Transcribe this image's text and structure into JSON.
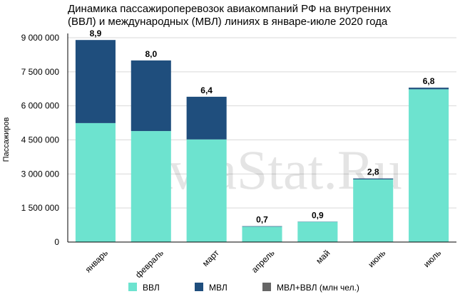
{
  "chart_data": {
    "type": "stacked_bar",
    "title": [
      "Динамика пассажироперевозок авиакомпаний РФ на внутренних",
      "(ВВЛ) и международных (МВЛ) линиях в январе-июле 2020 года"
    ],
    "ylabel": "Пассажиров",
    "watermark": "AviaStat.Ru",
    "categories": [
      "январь",
      "февраль",
      "март",
      "апрель",
      "май",
      "июнь",
      "июль"
    ],
    "series": [
      {
        "name": "ВВЛ",
        "color": "#6de3cf",
        "values": [
          5240000,
          4890000,
          4520000,
          680000,
          890000,
          2760000,
          6730000
        ]
      },
      {
        "name": "МВЛ",
        "color": "#1f4e7d",
        "values": [
          3660000,
          3110000,
          1880000,
          20000,
          10000,
          40000,
          70000
        ]
      },
      {
        "name": "МВЛ+ВВЛ (млн чел.)",
        "color": "#666666",
        "values": [
          8.9,
          8.0,
          6.4,
          0.7,
          0.9,
          2.8,
          6.8
        ],
        "value_labels": [
          "8,9",
          "8,0",
          "6,4",
          "0,7",
          "0,9",
          "2,8",
          "6,8"
        ]
      }
    ],
    "ylim": [
      0,
      9000000
    ],
    "yticks": [
      0,
      {
        "value": 1500000,
        "label": "1 500 000"
      },
      {
        "value": 3000000,
        "label": "3 000 000"
      },
      {
        "value": 4500000,
        "label": "4 500 000"
      },
      {
        "value": 6000000,
        "label": "6 000 000"
      },
      {
        "value": 7500000,
        "label": "7 500 000"
      },
      {
        "value": 9000000,
        "label": "9 000 000"
      }
    ],
    "grid": true
  }
}
